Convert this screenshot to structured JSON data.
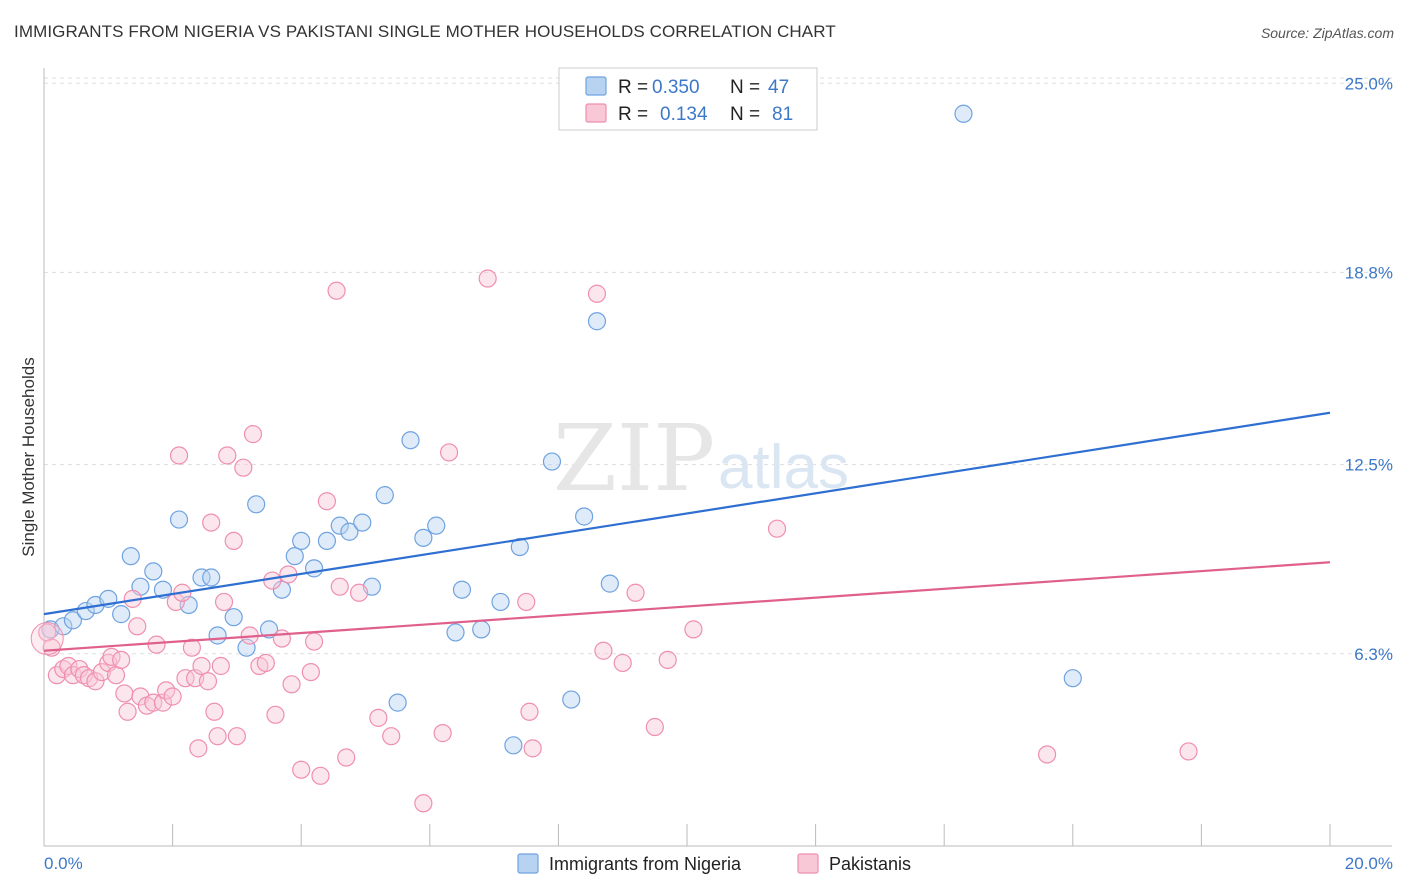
{
  "title": "IMMIGRANTS FROM NIGERIA VS PAKISTANI SINGLE MOTHER HOUSEHOLDS CORRELATION CHART",
  "source": "Source: ZipAtlas.com",
  "watermark": {
    "zip": "ZIP",
    "atlas": "atlas"
  },
  "colors": {
    "nigeria_stroke": "#6fa3e0",
    "nigeria_fill": "#b8d3f2",
    "nigeria_line": "#2e6fd1",
    "pakistan_stroke": "#ef8fae",
    "pakistan_fill": "#f9c8d7",
    "pakistan_line": "#e0608d",
    "grid": "#dddddd",
    "accent_text": "#3c78c8"
  },
  "legend": {
    "rows": [
      {
        "r_label": "R =",
        "r_value": "0.350",
        "n_label": "N =",
        "n_value": "47"
      },
      {
        "r_label": "R =",
        "r_value": "0.134",
        "n_label": "N =",
        "n_value": "81"
      }
    ]
  },
  "chart_data": {
    "type": "scatter",
    "title": "IMMIGRANTS FROM NIGERIA VS PAKISTANI SINGLE MOTHER HOUSEHOLDS CORRELATION CHART",
    "xlabel": "",
    "ylabel": "Single Mother Households",
    "xlim": [
      0,
      20
    ],
    "ylim": [
      0,
      25.5
    ],
    "x_tick_labels": [
      "0.0%",
      "20.0%"
    ],
    "y_ticks": [
      6.3,
      12.5,
      18.8,
      25.0
    ],
    "y_tick_labels": [
      "6.3%",
      "12.5%",
      "18.8%",
      "25.0%"
    ],
    "legend_entries": [
      "Immigrants from Nigeria",
      "Pakistanis"
    ],
    "series": [
      {
        "name": "Immigrants from Nigeria",
        "r": 0.35,
        "n": 47,
        "trend": {
          "x": [
            0,
            20
          ],
          "y": [
            7.6,
            14.2
          ]
        },
        "points": [
          [
            0.1,
            7.1
          ],
          [
            0.3,
            7.2
          ],
          [
            0.45,
            7.4
          ],
          [
            0.65,
            7.7
          ],
          [
            0.8,
            7.9
          ],
          [
            1.0,
            8.1
          ],
          [
            1.2,
            7.6
          ],
          [
            1.35,
            9.5
          ],
          [
            1.5,
            8.5
          ],
          [
            1.7,
            9.0
          ],
          [
            1.85,
            8.4
          ],
          [
            2.1,
            10.7
          ],
          [
            2.25,
            7.9
          ],
          [
            2.45,
            8.8
          ],
          [
            2.6,
            8.8
          ],
          [
            2.7,
            6.9
          ],
          [
            2.95,
            7.5
          ],
          [
            3.15,
            6.5
          ],
          [
            3.3,
            11.2
          ],
          [
            3.5,
            7.1
          ],
          [
            3.7,
            8.4
          ],
          [
            3.9,
            9.5
          ],
          [
            4.0,
            10.0
          ],
          [
            4.2,
            9.1
          ],
          [
            4.4,
            10.0
          ],
          [
            4.6,
            10.5
          ],
          [
            4.75,
            10.3
          ],
          [
            4.95,
            10.6
          ],
          [
            5.1,
            8.5
          ],
          [
            5.3,
            11.5
          ],
          [
            5.5,
            4.7
          ],
          [
            5.7,
            13.3
          ],
          [
            5.9,
            10.1
          ],
          [
            6.1,
            10.5
          ],
          [
            6.4,
            7.0
          ],
          [
            6.5,
            8.4
          ],
          [
            6.8,
            7.1
          ],
          [
            7.1,
            8.0
          ],
          [
            7.3,
            3.3
          ],
          [
            7.4,
            9.8
          ],
          [
            7.9,
            12.6
          ],
          [
            8.2,
            4.8
          ],
          [
            8.4,
            10.8
          ],
          [
            8.6,
            17.2
          ],
          [
            8.8,
            8.6
          ],
          [
            14.3,
            24.0
          ],
          [
            16.0,
            5.5
          ]
        ]
      },
      {
        "name": "Pakistanis",
        "r": 0.134,
        "n": 81,
        "trend": {
          "x": [
            0,
            20
          ],
          "y": [
            6.4,
            9.3
          ]
        },
        "points": [
          [
            0.05,
            7.0
          ],
          [
            0.12,
            6.5
          ],
          [
            0.2,
            5.6
          ],
          [
            0.3,
            5.8
          ],
          [
            0.38,
            5.9
          ],
          [
            0.45,
            5.6
          ],
          [
            0.55,
            5.8
          ],
          [
            0.62,
            5.6
          ],
          [
            0.7,
            5.5
          ],
          [
            0.8,
            5.4
          ],
          [
            0.9,
            5.7
          ],
          [
            1.0,
            6.0
          ],
          [
            1.05,
            6.2
          ],
          [
            1.12,
            5.6
          ],
          [
            1.2,
            6.1
          ],
          [
            1.25,
            5.0
          ],
          [
            1.3,
            4.4
          ],
          [
            1.38,
            8.1
          ],
          [
            1.45,
            7.2
          ],
          [
            1.5,
            4.9
          ],
          [
            1.6,
            4.6
          ],
          [
            1.7,
            4.7
          ],
          [
            1.75,
            6.6
          ],
          [
            1.85,
            4.7
          ],
          [
            1.9,
            5.1
          ],
          [
            2.0,
            4.9
          ],
          [
            2.05,
            8.0
          ],
          [
            2.1,
            12.8
          ],
          [
            2.15,
            8.3
          ],
          [
            2.2,
            5.5
          ],
          [
            2.3,
            6.5
          ],
          [
            2.35,
            5.5
          ],
          [
            2.4,
            3.2
          ],
          [
            2.45,
            5.9
          ],
          [
            2.55,
            5.4
          ],
          [
            2.6,
            10.6
          ],
          [
            2.65,
            4.4
          ],
          [
            2.7,
            3.6
          ],
          [
            2.75,
            5.9
          ],
          [
            2.8,
            8.0
          ],
          [
            2.85,
            12.8
          ],
          [
            2.95,
            10.0
          ],
          [
            3.0,
            3.6
          ],
          [
            3.1,
            12.4
          ],
          [
            3.2,
            6.9
          ],
          [
            3.25,
            13.5
          ],
          [
            3.35,
            5.9
          ],
          [
            3.45,
            6.0
          ],
          [
            3.55,
            8.7
          ],
          [
            3.6,
            4.3
          ],
          [
            3.7,
            6.8
          ],
          [
            3.8,
            8.9
          ],
          [
            3.85,
            5.3
          ],
          [
            4.0,
            2.5
          ],
          [
            4.15,
            5.7
          ],
          [
            4.2,
            6.7
          ],
          [
            4.3,
            2.3
          ],
          [
            4.4,
            11.3
          ],
          [
            4.55,
            18.2
          ],
          [
            4.6,
            8.5
          ],
          [
            4.7,
            2.9
          ],
          [
            4.9,
            8.3
          ],
          [
            5.2,
            4.2
          ],
          [
            5.4,
            3.6
          ],
          [
            5.9,
            1.4
          ],
          [
            6.2,
            3.7
          ],
          [
            6.3,
            12.9
          ],
          [
            6.9,
            18.6
          ],
          [
            7.5,
            8.0
          ],
          [
            7.55,
            4.4
          ],
          [
            7.6,
            3.2
          ],
          [
            8.6,
            18.1
          ],
          [
            8.7,
            6.4
          ],
          [
            9.0,
            6.0
          ],
          [
            9.2,
            8.3
          ],
          [
            9.5,
            3.9
          ],
          [
            9.7,
            6.1
          ],
          [
            10.1,
            7.1
          ],
          [
            11.4,
            10.4
          ],
          [
            15.6,
            3.0
          ],
          [
            17.8,
            3.1
          ]
        ]
      }
    ]
  }
}
